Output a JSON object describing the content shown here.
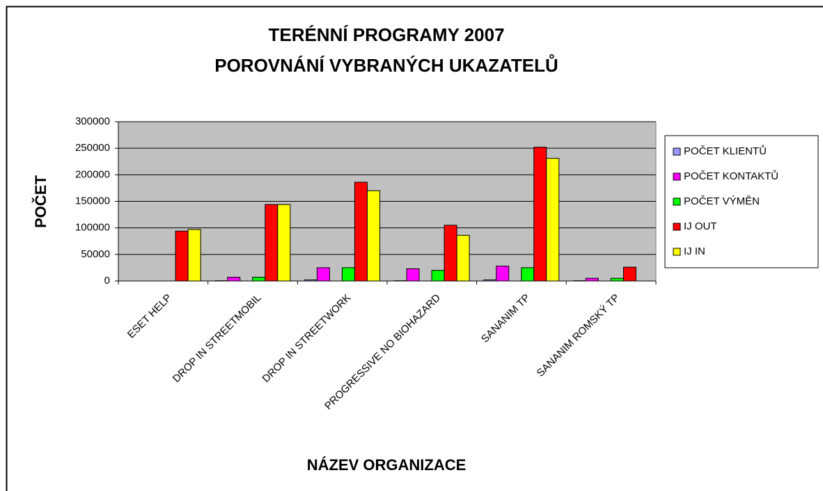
{
  "chart_data": {
    "type": "bar",
    "title": "TERÉNNÍ PROGRAMY 2007",
    "subtitle": "POROVNÁNÍ VYBRANÝCH UKAZATELŮ",
    "x_label": "NÁZEV ORGANIZACE",
    "y_label": "POČET",
    "categories": [
      "ESET HELP",
      "DROP IN STREETMOBIL",
      "DROP IN STREETWORK",
      "PROGRESSIVE NO BIOHAZARD",
      "SANANIM TP",
      "SANANIM ROMSKÝ TP"
    ],
    "series": [
      {
        "name": "POČET KLIENTŮ",
        "color": "#9999ff",
        "values": [
          0,
          500,
          2000,
          500,
          2000,
          500
        ]
      },
      {
        "name": "POČET KONTAKTŮ",
        "color": "#ff00ff",
        "values": [
          0,
          7000,
          25000,
          23000,
          28000,
          5000
        ]
      },
      {
        "name": "POČET VÝMĚN",
        "color": "#00ff00",
        "values": [
          0,
          7000,
          25000,
          20000,
          25000,
          5000
        ]
      },
      {
        "name": "IJ OUT",
        "color": "#ff0000",
        "values": [
          94000,
          144000,
          186000,
          105000,
          252000,
          26000
        ]
      },
      {
        "name": "IJ IN",
        "color": "#ffff00",
        "values": [
          97000,
          144000,
          170000,
          86000,
          231000,
          0
        ]
      }
    ],
    "ylim": [
      0,
      300000
    ],
    "yticks": [
      0,
      50000,
      100000,
      150000,
      200000,
      250000,
      300000
    ],
    "grid": true,
    "plot_background": "#c0c0c0",
    "legend": "right"
  }
}
